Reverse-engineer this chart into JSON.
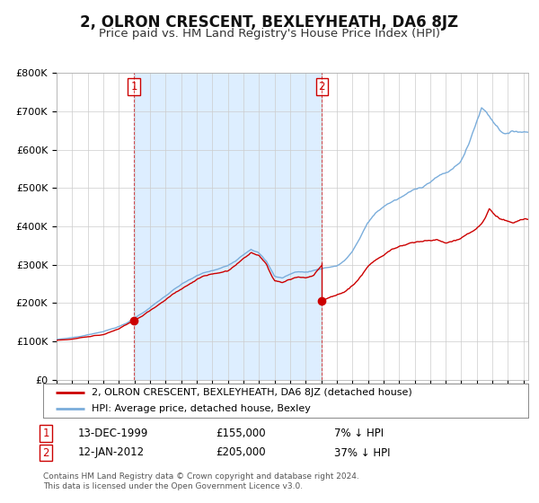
{
  "title": "2, OLRON CRESCENT, BEXLEYHEATH, DA6 8JZ",
  "subtitle": "Price paid vs. HM Land Registry's House Price Index (HPI)",
  "title_fontsize": 12,
  "subtitle_fontsize": 9.5,
  "plot_bg_color": "#ffffff",
  "grid_color": "#cccccc",
  "hpi_color": "#7aaddb",
  "price_color": "#cc0000",
  "shade_color": "#ddeeff",
  "ylim": [
    0,
    800000
  ],
  "yticks": [
    0,
    100000,
    200000,
    300000,
    400000,
    500000,
    600000,
    700000,
    800000
  ],
  "ytick_labels": [
    "£0",
    "£100K",
    "£200K",
    "£300K",
    "£400K",
    "£500K",
    "£600K",
    "£700K",
    "£800K"
  ],
  "xlim_start": 1995.0,
  "xlim_end": 2025.3,
  "purchase1_year": 1999.96,
  "purchase1_price": 155000,
  "purchase1_label": "1",
  "purchase2_year": 2012.04,
  "purchase2_price": 205000,
  "purchase2_label": "2",
  "legend_house_label": "2, OLRON CRESCENT, BEXLEYHEATH, DA6 8JZ (detached house)",
  "legend_hpi_label": "HPI: Average price, detached house, Bexley",
  "annotation1_date": "13-DEC-1999",
  "annotation1_price": "£155,000",
  "annotation1_hpi": "7% ↓ HPI",
  "annotation2_date": "12-JAN-2012",
  "annotation2_price": "£205,000",
  "annotation2_hpi": "37% ↓ HPI",
  "footnote": "Contains HM Land Registry data © Crown copyright and database right 2024.\nThis data is licensed under the Open Government Licence v3.0."
}
